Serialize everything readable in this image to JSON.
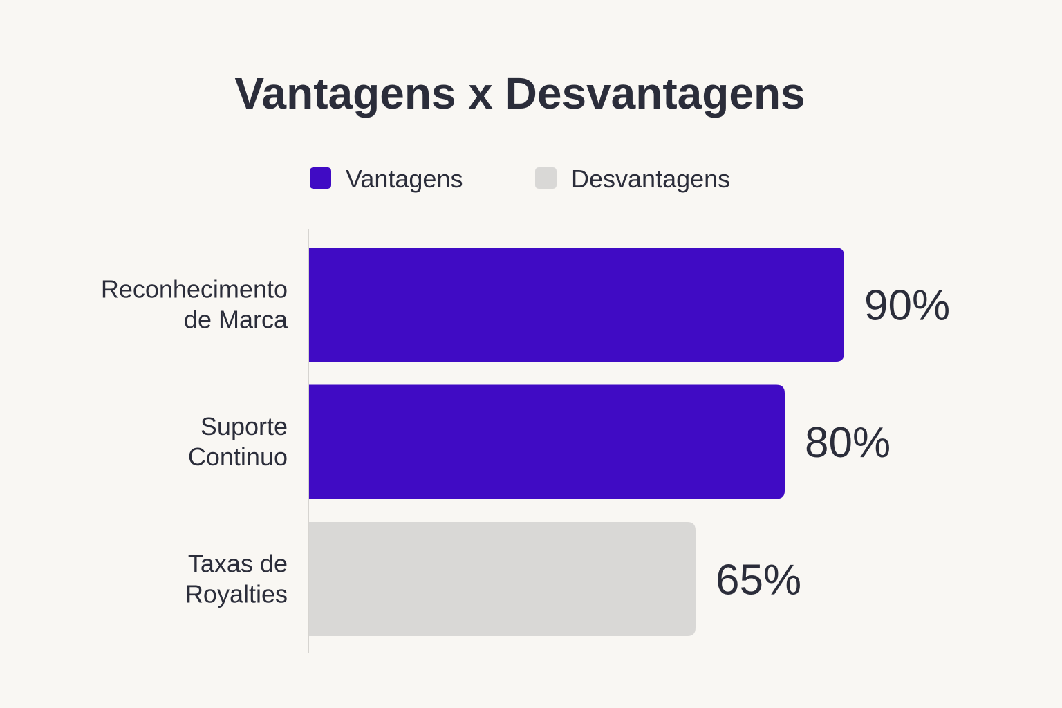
{
  "chart_data": {
    "type": "bar",
    "orientation": "horizontal",
    "title": "Vantagens x Desvantagens",
    "legend": {
      "placement": "top",
      "entries": [
        {
          "name": "Vantagens",
          "color": "#400bc4"
        },
        {
          "name": "Desvantagens",
          "color": "#d9d8d6"
        }
      ]
    },
    "categories": [
      [
        "Reconhecimento",
        "de Marca"
      ],
      [
        "Suporte",
        "Continuo"
      ],
      [
        "Taxas de",
        "Royalties"
      ]
    ],
    "values": [
      90,
      80,
      65
    ],
    "value_labels": [
      "90%",
      "80%",
      "65%"
    ],
    "bar_series": [
      "Vantagens",
      "Vantagens",
      "Desvantagens"
    ],
    "unit": "%",
    "xlim": [
      0,
      100
    ],
    "grid": false
  }
}
